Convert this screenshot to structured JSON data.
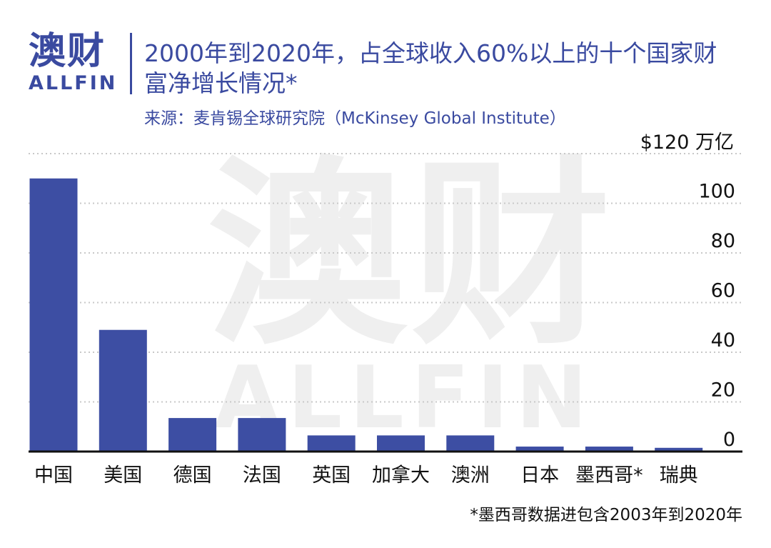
{
  "logo": {
    "text_cn": "澳财",
    "text_en": "ALLFIN"
  },
  "header": {
    "title": "2000年到2020年，占全球收入60%以上的十个国家财富净增长情况*",
    "source": "来源：麦肯锡全球研究院（McKinsey Global Institute）"
  },
  "watermark": {
    "text_cn": "澳财",
    "text_en": "ALLFIN"
  },
  "footnote": "*墨西哥数据进包含2003年到2020年",
  "colors": {
    "bar": "#3d4ea3",
    "brand": "#3a4aa0",
    "grid": "#c8c8c8",
    "axis": "#111111"
  },
  "chart_data": {
    "type": "bar",
    "unit_label": "$120 万亿",
    "categories": [
      "中国",
      "美国",
      "德国",
      "法国",
      "英国",
      "加拿大",
      "澳洲",
      "日本",
      "墨西哥*",
      "瑞典"
    ],
    "values": [
      110,
      49,
      13.5,
      13.5,
      6.5,
      6.5,
      6.5,
      2,
      2,
      1.5
    ],
    "y_ticks": [
      0,
      20,
      40,
      60,
      80,
      100
    ],
    "ylim": [
      0,
      120
    ],
    "grid": true,
    "y_axis_position": "right"
  }
}
